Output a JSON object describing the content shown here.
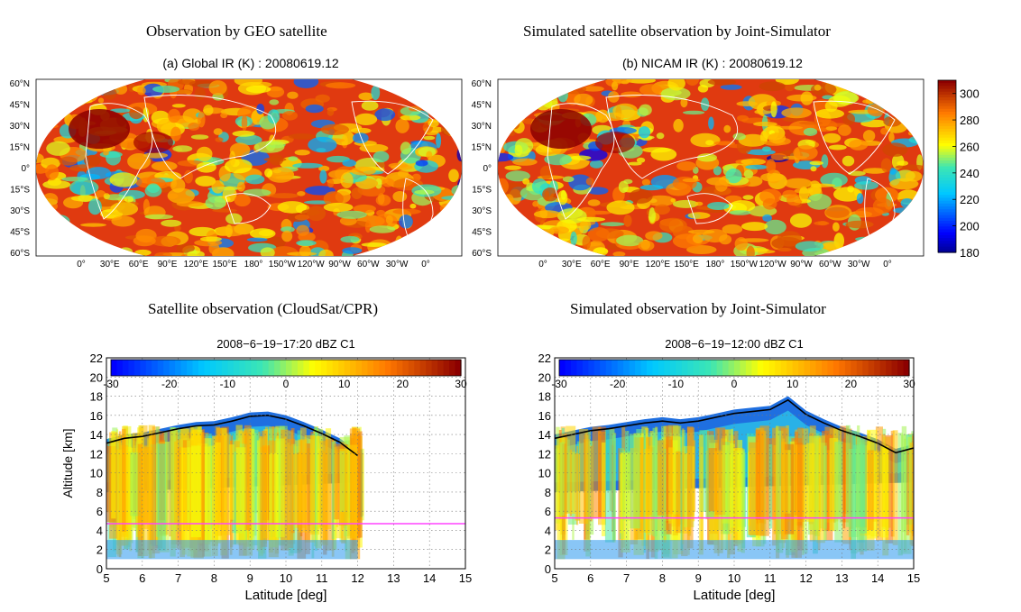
{
  "headings": {
    "top_left": "Observation by GEO satellite",
    "top_right": "Simulated satellite observation by Joint-Simulator",
    "bottom_left": "Satellite observation (CloudSat/CPR)",
    "bottom_right": "Simulated observation by Joint-Simulator"
  },
  "chart_data": [
    {
      "id": "a",
      "type": "heatmap",
      "title": "(a) Global IR (K) : 20080619.12",
      "lat_labels": [
        "60°N",
        "45°N",
        "30°N",
        "15°N",
        "0°",
        "15°S",
        "30°S",
        "45°S",
        "60°S"
      ],
      "lon_labels": [
        "0°",
        "30°E",
        "60°E",
        "90°E",
        "120°E",
        "150°E",
        "180°",
        "150°W",
        "120°W",
        "90°W",
        "60°W",
        "30°W",
        "0°"
      ],
      "colorbar": {
        "min": 180,
        "max": 310,
        "ticks": [
          180,
          200,
          220,
          240,
          260,
          280,
          300
        ]
      }
    },
    {
      "id": "b",
      "type": "heatmap",
      "title": "(b) NICAM IR (K) : 20080619.12",
      "lat_labels": [
        "60°N",
        "45°N",
        "30°N",
        "15°N",
        "0°",
        "15°S",
        "30°S",
        "45°S",
        "60°S"
      ],
      "lon_labels": [
        "0°",
        "30°E",
        "60°E",
        "90°E",
        "120°E",
        "150°E",
        "180°",
        "150°W",
        "120°W",
        "90°W",
        "60°W",
        "30°W",
        "0°"
      ],
      "colorbar": {
        "min": 180,
        "max": 310,
        "ticks": [
          180,
          200,
          220,
          240,
          260,
          280,
          300
        ]
      }
    },
    {
      "id": "c",
      "type": "heatmap",
      "title": "2008−6−19−17:20 dBZ C1",
      "xlabel": "Latitude [deg]",
      "ylabel": "Altitude [km]",
      "xlim": [
        5,
        15
      ],
      "ylim": [
        0,
        22
      ],
      "xticks": [
        5,
        6,
        7,
        8,
        9,
        10,
        11,
        12,
        13,
        14,
        15
      ],
      "yticks": [
        0,
        2,
        4,
        6,
        8,
        10,
        12,
        14,
        16,
        18,
        20,
        22
      ],
      "grid": true,
      "colorbar": {
        "min": -30,
        "max": 30,
        "ticks": [
          -30,
          -20,
          -10,
          0,
          10,
          20,
          30
        ],
        "placement": "top"
      },
      "melting_layer_km": 4.7,
      "cloud_top_km": [
        [
          5.0,
          13.5
        ],
        [
          5.5,
          14.0
        ],
        [
          6.0,
          14.2
        ],
        [
          6.5,
          14.6
        ],
        [
          7.0,
          15.0
        ],
        [
          7.5,
          15.3
        ],
        [
          8.0,
          15.4
        ],
        [
          8.5,
          15.8
        ],
        [
          9.0,
          16.3
        ],
        [
          9.5,
          16.4
        ],
        [
          10.0,
          16.0
        ],
        [
          10.5,
          15.3
        ],
        [
          11.0,
          14.5
        ],
        [
          11.5,
          13.6
        ],
        [
          12.0,
          12.2
        ]
      ]
    },
    {
      "id": "d",
      "type": "heatmap",
      "title": "2008−6−19−12:00 dBZ C1",
      "xlabel": "Latitude [deg]",
      "ylabel": "",
      "xlim": [
        5,
        15
      ],
      "ylim": [
        0,
        22
      ],
      "xticks": [
        5,
        6,
        7,
        8,
        9,
        10,
        11,
        12,
        13,
        14,
        15
      ],
      "yticks": [
        0,
        2,
        4,
        6,
        8,
        10,
        12,
        14,
        16,
        18,
        20,
        22
      ],
      "grid": true,
      "colorbar": {
        "min": -30,
        "max": 30,
        "ticks": [
          -30,
          -20,
          -10,
          0,
          10,
          20,
          30
        ],
        "placement": "top"
      },
      "melting_layer_km": 5.3,
      "cloud_top_km": [
        [
          5.0,
          14.0
        ],
        [
          5.5,
          14.4
        ],
        [
          6.0,
          14.8
        ],
        [
          6.5,
          15.0
        ],
        [
          7.0,
          15.3
        ],
        [
          7.5,
          15.6
        ],
        [
          8.0,
          15.8
        ],
        [
          8.5,
          15.6
        ],
        [
          9.0,
          15.8
        ],
        [
          9.5,
          16.2
        ],
        [
          10.0,
          16.6
        ],
        [
          10.5,
          16.8
        ],
        [
          11.0,
          17.0
        ],
        [
          11.5,
          18.0
        ],
        [
          12.0,
          16.5
        ],
        [
          12.5,
          15.6
        ],
        [
          13.0,
          14.8
        ],
        [
          13.5,
          14.2
        ],
        [
          14.0,
          13.5
        ],
        [
          14.5,
          12.5
        ],
        [
          15.0,
          13.0
        ]
      ]
    }
  ]
}
